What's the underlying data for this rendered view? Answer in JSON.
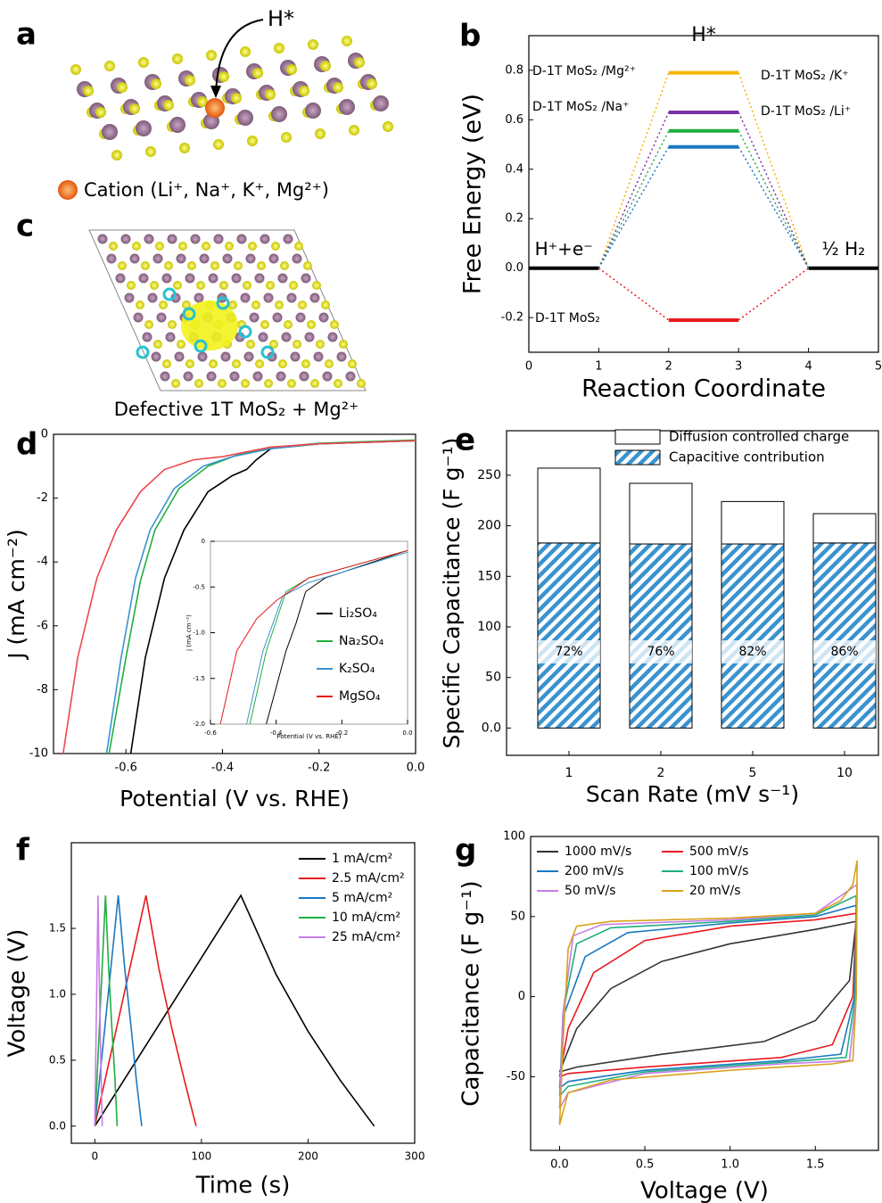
{
  "illustrations": {
    "panel_a": {
      "label": "a",
      "adsorbate": "H*",
      "legend": "Cation (Li⁺, Na⁺, K⁺, Mg²⁺)"
    },
    "panel_c": {
      "label": "c",
      "caption": "Defective 1T MoS₂ + Mg²⁺"
    }
  },
  "chart_data": [
    {
      "type": "energy-diagram",
      "label": "b",
      "xlabel": "Reaction Coordinate",
      "ylabel": "Free Energy (eV)",
      "xlim": [
        0,
        5
      ],
      "ylim": [
        -0.34,
        0.94
      ],
      "xticks": [
        0,
        1,
        2,
        3,
        4,
        5
      ],
      "yticks": [
        -0.2,
        {
          "value": 0,
          "label": "0.0"
        },
        0.2,
        0.4,
        0.6,
        0.8
      ],
      "annotation": "H*",
      "states": [
        {
          "label": "H⁺+e⁻",
          "x": [
            0,
            1
          ],
          "value": 0,
          "color": "#000000"
        },
        {
          "label": "½ H₂",
          "x": [
            4,
            5
          ],
          "value": 0,
          "color": "#000000"
        }
      ],
      "series": [
        {
          "name": "D-1T MoS₂ /Mg²⁺",
          "color": "#f5b400",
          "x": [
            1,
            2,
            3,
            4
          ],
          "values": [
            0,
            0.79,
            0.79,
            0
          ]
        },
        {
          "name": "D-1T MoS₂ /Na⁺",
          "color": "#7b2fa8",
          "x": [
            1,
            2,
            3,
            4
          ],
          "values": [
            0,
            0.63,
            0.63,
            0
          ]
        },
        {
          "name": "D-1T MoS₂ /K⁺",
          "color": "#1fae3f",
          "x": [
            1,
            2,
            3,
            4
          ],
          "values": [
            0,
            0.555,
            0.555,
            0
          ]
        },
        {
          "name": "D-1T MoS₂ /Li⁺",
          "color": "#1a78c2",
          "x": [
            1,
            2,
            3,
            4
          ],
          "values": [
            0,
            0.49,
            0.49,
            0
          ]
        },
        {
          "name": "D-1T MoS₂",
          "color": "#e8191e",
          "x": [
            1,
            2,
            3,
            4
          ],
          "values": [
            0,
            -0.21,
            -0.21,
            0
          ]
        }
      ]
    },
    {
      "type": "line",
      "label": "d",
      "xlabel": "Potential (V vs. RHE)",
      "ylabel": "J (mA cm⁻²)",
      "xlim": [
        -0.75,
        0
      ],
      "ylim": [
        -10,
        0
      ],
      "xticks": [
        -0.6,
        -0.4,
        -0.2,
        {
          "value": 0,
          "label": "0.0"
        }
      ],
      "yticks": [
        -10,
        -8,
        -6,
        -4,
        -2,
        0
      ],
      "series": [
        {
          "color": "#000000",
          "x": [
            -0.59,
            -0.56,
            -0.52,
            -0.48,
            -0.43,
            -0.38,
            -0.35,
            -0.33,
            -0.3,
            -0.2,
            0
          ],
          "values": [
            -10,
            -7,
            -4.5,
            -3,
            -1.8,
            -1.3,
            -1.1,
            -0.8,
            -0.45,
            -0.3,
            -0.2
          ]
        },
        {
          "color": "#1fae3f",
          "x": [
            -0.635,
            -0.6,
            -0.57,
            -0.54,
            -0.49,
            -0.43,
            -0.37,
            -0.3,
            -0.2,
            0
          ],
          "values": [
            -10,
            -7,
            -4.6,
            -3,
            -1.7,
            -1,
            -0.65,
            -0.42,
            -0.28,
            -0.18
          ]
        },
        {
          "color": "#3a93cf",
          "x": [
            -0.64,
            -0.61,
            -0.58,
            -0.55,
            -0.5,
            -0.44,
            -0.38,
            -0.3,
            -0.2,
            0
          ],
          "values": [
            -10,
            -7,
            -4.5,
            -3,
            -1.7,
            -1,
            -0.7,
            -0.45,
            -0.3,
            -0.2
          ]
        },
        {
          "color": "#f0464a",
          "x": [
            -0.73,
            -0.7,
            -0.66,
            -0.62,
            -0.57,
            -0.52,
            -0.46,
            -0.4,
            -0.3,
            -0.2,
            0
          ],
          "values": [
            -10,
            -7,
            -4.5,
            -3,
            -1.8,
            -1.1,
            -0.8,
            -0.7,
            -0.4,
            -0.3,
            -0.2
          ]
        }
      ]
    },
    {
      "type": "line",
      "xlabel": "Potential (V vs. RHE)",
      "ylabel": "j (mA cm⁻²)",
      "xlim": [
        -0.6,
        0
      ],
      "ylim": [
        -2,
        0
      ],
      "xticks": [
        -0.6,
        -0.4,
        -0.2,
        {
          "value": 0,
          "label": "0.0"
        }
      ],
      "yticks": [
        {
          "value": -2,
          "label": "-2.0"
        },
        -1.5,
        {
          "value": -1,
          "label": "-1.0"
        },
        -0.5,
        0
      ],
      "series": [
        {
          "name": "Li₂SO₄",
          "color": "#000000",
          "x": [
            -0.43,
            -0.37,
            -0.34,
            -0.31,
            -0.25,
            0
          ],
          "values": [
            -2,
            -1.2,
            -0.9,
            -0.55,
            -0.4,
            -0.1
          ]
        },
        {
          "name": "Na₂SO₄",
          "color": "#1fae3f",
          "x": [
            -0.48,
            -0.43,
            -0.37,
            -0.3,
            0
          ],
          "values": [
            -2,
            -1.2,
            -0.55,
            -0.4,
            -0.1
          ]
        },
        {
          "name": "K₂SO₄",
          "color": "#3a93cf",
          "x": [
            -0.49,
            -0.44,
            -0.38,
            -0.3,
            0
          ],
          "values": [
            -2,
            -1.2,
            -0.6,
            -0.45,
            -0.12
          ]
        },
        {
          "name": "MgSO₄",
          "color": "#e8191e",
          "x": [
            -0.57,
            -0.52,
            -0.46,
            -0.4,
            -0.3,
            0
          ],
          "values": [
            -2,
            -1.2,
            -0.85,
            -0.65,
            -0.4,
            -0.1
          ]
        }
      ]
    },
    {
      "type": "stacked-bar",
      "label": "e",
      "xlabel": "Scan Rate (mV s⁻¹)",
      "ylabel": "Specific Capacitance (F g⁻¹)",
      "categories": [
        "1",
        "2",
        "5",
        "10"
      ],
      "ylim": [
        -27,
        294
      ],
      "yticks": [
        {
          "value": 0,
          "label": "0.0"
        },
        50,
        100,
        150,
        200,
        250
      ],
      "series": [
        {
          "name": "Capacitive contribution",
          "color": "#3a93cf",
          "hatch": true,
          "values": [
            183,
            182,
            182,
            183
          ]
        },
        {
          "name": "Diffusion controlled charge",
          "color": "#ffffff",
          "values": [
            74,
            60,
            42,
            29
          ]
        }
      ],
      "percent_labels": [
        "72%",
        "76%",
        "82%",
        "86%"
      ]
    },
    {
      "type": "line",
      "label": "f",
      "xlabel": "Time (s)",
      "ylabel": "Voltage (V)",
      "xlim": [
        -22,
        300
      ],
      "ylim": [
        -0.13,
        2.15
      ],
      "xticks": [
        0,
        100,
        200,
        300
      ],
      "yticks": [
        {
          "value": 0,
          "label": "0.0"
        },
        0.5,
        {
          "value": 1,
          "label": "1.0"
        },
        1.5
      ],
      "series": [
        {
          "name": "1 mA/cm²",
          "color": "#000000",
          "x": [
            0,
            137,
            170,
            200,
            230,
            262
          ],
          "values": [
            0,
            1.75,
            1.15,
            0.72,
            0.35,
            0
          ]
        },
        {
          "name": "2.5 mA/cm²",
          "color": "#e8191e",
          "x": [
            0,
            48,
            60,
            72,
            84,
            95
          ],
          "values": [
            0,
            1.75,
            1.2,
            0.75,
            0.35,
            0
          ]
        },
        {
          "name": "5 mA/cm²",
          "color": "#1a78c2",
          "x": [
            0,
            22,
            28,
            34,
            39,
            44
          ],
          "values": [
            0,
            1.75,
            1.2,
            0.75,
            0.35,
            0
          ]
        },
        {
          "name": "10 mA/cm²",
          "color": "#1fae3f",
          "x": [
            0,
            10,
            13,
            16,
            19,
            21
          ],
          "values": [
            0,
            1.75,
            1.2,
            0.75,
            0.35,
            0
          ]
        },
        {
          "name": "25 mA/cm²",
          "color": "#c77ee8",
          "x": [
            0,
            3,
            4,
            5,
            6,
            7
          ],
          "values": [
            0,
            1.75,
            1.2,
            0.75,
            0.35,
            0
          ]
        }
      ]
    },
    {
      "type": "line",
      "label": "g",
      "xlabel": "Voltage (V)",
      "ylabel": "Capacitance (F g⁻¹)",
      "xlim": [
        -0.17,
        1.87
      ],
      "ylim": [
        -96,
        100
      ],
      "xticks": [
        {
          "value": 0,
          "label": "0.0"
        },
        0.5,
        {
          "value": 1,
          "label": "1.0"
        },
        1.5
      ],
      "yticks": [
        -50,
        0,
        50,
        100
      ],
      "series": [
        {
          "name": "1000 mV/s",
          "color": "#333333",
          "x": [
            0,
            0.1,
            0.3,
            0.6,
            1,
            1.5,
            1.74,
            1.7,
            1.5,
            1.2,
            0.6,
            0.1,
            0
          ],
          "values": [
            -47,
            -20,
            5,
            22,
            33,
            42,
            47,
            10,
            -15,
            -28,
            -36,
            -44,
            -47
          ]
        },
        {
          "name": "500 mV/s",
          "color": "#e8191e",
          "x": [
            0,
            0.05,
            0.2,
            0.5,
            1,
            1.5,
            1.74,
            1.72,
            1.6,
            1.3,
            0.5,
            0.05,
            0
          ],
          "values": [
            -50,
            -20,
            15,
            35,
            44,
            48,
            52,
            0,
            -30,
            -38,
            -44,
            -48,
            -50
          ]
        },
        {
          "name": "200 mV/s",
          "color": "#1a78c2",
          "x": [
            0,
            0.03,
            0.15,
            0.4,
            1,
            1.5,
            1.74,
            1.73,
            1.65,
            1.3,
            0.5,
            0.05,
            0
          ],
          "values": [
            -57,
            -10,
            25,
            40,
            46,
            50,
            57,
            0,
            -36,
            -40,
            -46,
            -53,
            -57
          ]
        },
        {
          "name": "100 mV/s",
          "color": "#1fae7f",
          "x": [
            0,
            0.02,
            0.1,
            0.3,
            1,
            1.5,
            1.74,
            1.735,
            1.68,
            1.3,
            0.5,
            0.05,
            0
          ],
          "values": [
            -62,
            -10,
            33,
            43,
            47,
            51,
            63,
            0,
            -38,
            -41,
            -47,
            -56,
            -62
          ]
        },
        {
          "name": "50 mV/s",
          "color": "#c77ee8",
          "x": [
            0,
            0.02,
            0.08,
            0.25,
            1,
            1.5,
            1.745,
            1.74,
            1.7,
            1.3,
            0.5,
            0.05,
            0
          ],
          "values": [
            -70,
            -10,
            38,
            45,
            48,
            52,
            70,
            0,
            -40,
            -42,
            -48,
            -60,
            -70
          ]
        },
        {
          "name": "20 mV/s",
          "color": "#d9a21b",
          "x": [
            0,
            0.02,
            0.05,
            0.1,
            0.3,
            1,
            1.5,
            1.65,
            1.72,
            1.745,
            1.74,
            1.72,
            1.6,
            1,
            0.3,
            0.05,
            0
          ],
          "values": [
            -80,
            -30,
            30,
            44,
            47,
            49,
            52,
            60,
            70,
            85,
            0,
            -40,
            -42,
            -46,
            -52,
            -60,
            -80
          ]
        }
      ]
    }
  ]
}
